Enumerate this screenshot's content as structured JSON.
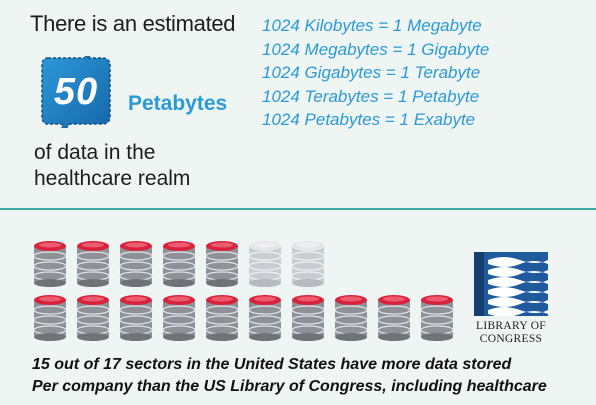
{
  "intro": "There is an estimated",
  "badge_value": "50",
  "unit": "Petabytes",
  "tail_line1": "of data in the",
  "tail_line2": "healthcare realm",
  "conversions": [
    "1024 Kilobytes = 1 Megabyte",
    "1024 Megabytes = 1 Gigabyte",
    "1024 Gigabytes = 1 Terabyte",
    "1024 Terabytes = 1 Petabyte",
    "1024 Petabytes = 1 Exabyte"
  ],
  "sectors": {
    "with_more_data": 15,
    "total": 17
  },
  "logo_text_line1": "LIBRARY OF",
  "logo_text_line2": "CONGRESS",
  "caption_line1": "15 out of 17 sectors in the United States have more data stored",
  "caption_line2": "Per company than the US Library of Congress, including healthcare",
  "colors": {
    "accent_blue": "#2b9ad6",
    "badge_blue": "#1f7fc4",
    "divider_teal": "#3ca9a4",
    "cylinder_red": "#d9233c",
    "cylinder_gray": "#8e9298",
    "cylinder_faded": "#c9ccd0"
  }
}
